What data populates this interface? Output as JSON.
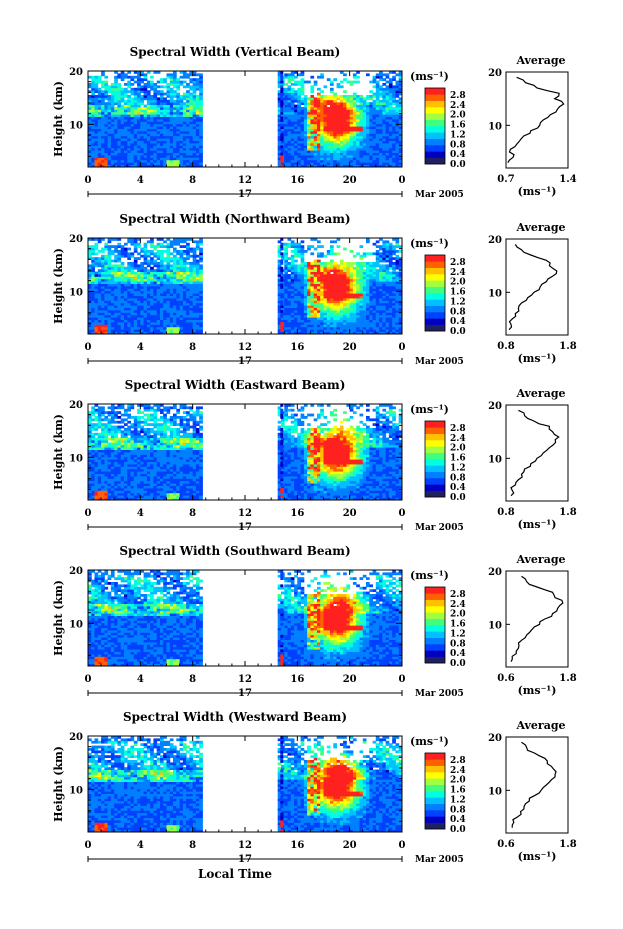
{
  "figure": {
    "x_axis_label": "Local Time",
    "x_ticks": [
      "0",
      "4",
      "8",
      "12",
      "16",
      "20",
      "0"
    ],
    "day_label": "17",
    "date_label": "Mar 2005",
    "height_label": "Height (km)",
    "height_ticks": [
      "20",
      "10"
    ],
    "colorbar_unit": "(ms⁻¹)",
    "colorbar_ticks": [
      "2.8",
      "2.4",
      "2.0",
      "1.6",
      "1.2",
      "0.8",
      "0.4",
      "0.0"
    ],
    "average_title": "Average",
    "average_unit": "(ms⁻¹)",
    "colormap": [
      "#202060",
      "#0000c0",
      "#0040ff",
      "#0080ff",
      "#00c0ff",
      "#00ffe0",
      "#40ff80",
      "#a0ff40",
      "#ffff00",
      "#ffc000",
      "#ff6000",
      "#ff2020"
    ]
  },
  "chart_data": [
    {
      "type": "heatmap",
      "title": "Spectral Width (Vertical Beam)",
      "xlabel": "Local Time",
      "ylabel": "Height (km)",
      "x_range_hours": [
        0,
        24
      ],
      "y_range_km": [
        2,
        20
      ],
      "color_range": [
        0.0,
        3.0
      ],
      "data_gaps_hours": [
        [
          8.8,
          14.6
        ]
      ],
      "average_profile": {
        "title": "Average",
        "xlabel": "(ms⁻¹)",
        "x_ticks": [
          "0.7",
          "1.4"
        ],
        "xlim": [
          0.7,
          1.4
        ],
        "y_ticks": [
          "20",
          "10"
        ],
        "heights_km": [
          3,
          4,
          5,
          6,
          7,
          8,
          9,
          10,
          11,
          12,
          13,
          14,
          15,
          16,
          17,
          18,
          19
        ],
        "values": [
          0.72,
          0.78,
          0.74,
          0.8,
          0.85,
          0.9,
          0.98,
          1.08,
          1.12,
          1.2,
          1.28,
          1.35,
          1.25,
          1.3,
          1.05,
          0.92,
          0.82
        ]
      }
    },
    {
      "type": "heatmap",
      "title": "Spectral Width (Northward Beam)",
      "xlabel": "Local Time",
      "ylabel": "Height (km)",
      "x_range_hours": [
        0,
        24
      ],
      "y_range_km": [
        2,
        20
      ],
      "color_range": [
        0.0,
        3.0
      ],
      "data_gaps_hours": [
        [
          8.8,
          14.6
        ]
      ],
      "average_profile": {
        "title": "Average",
        "xlabel": "(ms⁻¹)",
        "x_ticks": [
          "0.8",
          "1.8"
        ],
        "xlim": [
          0.8,
          1.8
        ],
        "y_ticks": [
          "20",
          "10"
        ],
        "heights_km": [
          3,
          4,
          5,
          6,
          7,
          8,
          9,
          10,
          11,
          12,
          13,
          14,
          15,
          16,
          17,
          18,
          19
        ],
        "values": [
          0.85,
          0.88,
          0.9,
          0.95,
          1.0,
          1.05,
          1.15,
          1.25,
          1.35,
          1.45,
          1.55,
          1.62,
          1.5,
          1.45,
          1.2,
          1.05,
          0.95
        ]
      }
    },
    {
      "type": "heatmap",
      "title": "Spectral Width (Eastward Beam)",
      "xlabel": "Local Time",
      "ylabel": "Height (km)",
      "x_range_hours": [
        0,
        24
      ],
      "y_range_km": [
        2,
        20
      ],
      "color_range": [
        0.0,
        3.0
      ],
      "data_gaps_hours": [
        [
          8.8,
          14.6
        ]
      ],
      "average_profile": {
        "title": "Average",
        "xlabel": "(ms⁻¹)",
        "x_ticks": [
          "0.8",
          "1.8"
        ],
        "xlim": [
          0.8,
          1.8
        ],
        "y_ticks": [
          "20",
          "10"
        ],
        "heights_km": [
          3,
          4,
          5,
          6,
          7,
          8,
          9,
          10,
          11,
          12,
          13,
          14,
          15,
          16,
          17,
          18,
          19
        ],
        "values": [
          0.88,
          0.9,
          0.95,
          1.0,
          1.05,
          1.1,
          1.2,
          1.3,
          1.4,
          1.5,
          1.6,
          1.65,
          1.55,
          1.5,
          1.25,
          1.1,
          1.0
        ]
      }
    },
    {
      "type": "heatmap",
      "title": "Spectral Width (Southward Beam)",
      "xlabel": "Local Time",
      "ylabel": "Height (km)",
      "x_range_hours": [
        0,
        24
      ],
      "y_range_km": [
        2,
        20
      ],
      "color_range": [
        0.0,
        3.0
      ],
      "data_gaps_hours": [
        [
          8.8,
          14.6
        ]
      ],
      "average_profile": {
        "title": "Average",
        "xlabel": "(ms⁻¹)",
        "x_ticks": [
          "0.6",
          "1.8"
        ],
        "xlim": [
          0.6,
          1.8
        ],
        "y_ticks": [
          "20",
          "10"
        ],
        "heights_km": [
          3,
          4,
          5,
          6,
          7,
          8,
          9,
          10,
          11,
          12,
          13,
          14,
          15,
          16,
          17,
          18,
          19
        ],
        "values": [
          0.7,
          0.72,
          0.8,
          0.85,
          0.9,
          1.0,
          1.1,
          1.25,
          1.35,
          1.5,
          1.6,
          1.7,
          1.55,
          1.5,
          1.2,
          1.0,
          0.9
        ]
      }
    },
    {
      "type": "heatmap",
      "title": "Spectral Width (Westward Beam)",
      "xlabel": "Local Time",
      "ylabel": "Height (km)",
      "x_range_hours": [
        0,
        24
      ],
      "y_range_km": [
        2,
        20
      ],
      "color_range": [
        0.0,
        3.0
      ],
      "data_gaps_hours": [
        [
          8.8,
          14.6
        ]
      ],
      "average_profile": {
        "title": "Average",
        "xlabel": "(ms⁻¹)",
        "x_ticks": [
          "0.6",
          "1.8"
        ],
        "xlim": [
          0.6,
          1.8
        ],
        "y_ticks": [
          "20",
          "10"
        ],
        "heights_km": [
          3,
          4,
          5,
          6,
          7,
          8,
          9,
          10,
          11,
          12,
          13,
          14,
          15,
          16,
          17,
          18,
          19
        ],
        "values": [
          0.72,
          0.75,
          0.82,
          0.88,
          0.95,
          1.05,
          1.15,
          1.28,
          1.38,
          1.48,
          1.55,
          1.52,
          1.4,
          1.35,
          1.15,
          1.0,
          0.9
        ]
      }
    }
  ]
}
